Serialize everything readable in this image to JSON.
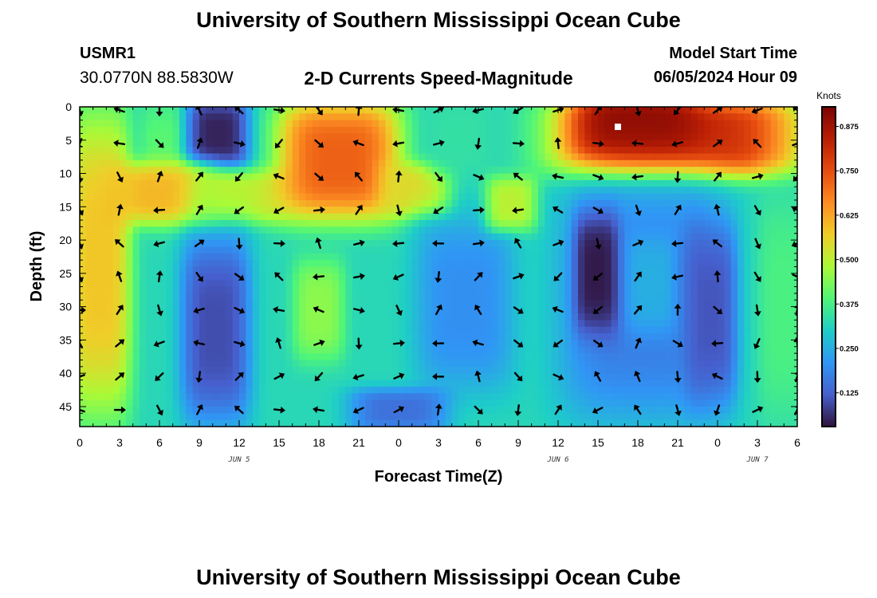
{
  "page": {
    "title": "University of Southern Mississippi Ocean Cube",
    "footer_title": "University of Southern Mississippi Ocean Cube",
    "station_id": "USMR1",
    "station_coords": "30.0770N  88.5830W",
    "model_label": "Model Start Time",
    "model_time": "06/05/2024 Hour 09"
  },
  "chart_data": {
    "type": "heatmap",
    "title": "2-D Currents Speed-Magnitude",
    "xlabel": "Forecast Time(Z)",
    "ylabel": "Depth (ft)",
    "x_tick_labels": [
      "0",
      "3",
      "6",
      "9",
      "12",
      "15",
      "18",
      "21",
      "0",
      "3",
      "6",
      "9",
      "12",
      "15",
      "18",
      "21",
      "0",
      "3",
      "6"
    ],
    "x_range_hours": [
      0,
      54
    ],
    "day_labels": [
      {
        "label": "JUN 5",
        "hour": 12
      },
      {
        "label": "JUN 6",
        "hour": 36
      },
      {
        "label": "JUN 7",
        "hour": 51
      }
    ],
    "y_ticks": [
      0,
      5,
      10,
      15,
      20,
      25,
      30,
      35,
      40,
      45
    ],
    "ylim": [
      0,
      48
    ],
    "y_inverted": true,
    "colorbar": {
      "label": "Knots",
      "ticks": [
        0.125,
        0.25,
        0.375,
        0.5,
        0.625,
        0.75,
        0.875
      ],
      "tick_labels": [
        "0.125",
        "0.250",
        "0.375",
        "0.500",
        "0.625",
        "0.750",
        "0.875"
      ],
      "range": [
        0.03,
        0.93
      ],
      "colormap": "turbo"
    },
    "speed_regions": [
      {
        "t": [
          0,
          3
        ],
        "d": [
          0,
          47
        ],
        "speed": 0.58
      },
      {
        "t": [
          5.5,
          7
        ],
        "d": [
          0,
          17
        ],
        "speed": 0.4
      },
      {
        "t": [
          9,
          11.8
        ],
        "d": [
          0,
          8
        ],
        "speed": 0.05
      },
      {
        "t": [
          3,
          9
        ],
        "d": [
          10,
          16
        ],
        "speed": 0.6
      },
      {
        "t": [
          9,
          15
        ],
        "d": [
          11,
          16
        ],
        "speed": 0.5
      },
      {
        "t": [
          8.5,
          12
        ],
        "d": [
          20,
          47
        ],
        "speed": 0.1
      },
      {
        "t": [
          15.5,
          23.5
        ],
        "d": [
          0,
          16
        ],
        "speed": 0.72
      },
      {
        "t": [
          23.5,
          27
        ],
        "d": [
          10,
          15
        ],
        "speed": 0.55
      },
      {
        "t": [
          17,
          19
        ],
        "d": [
          24,
          37
        ],
        "speed": 0.45
      },
      {
        "t": [
          27,
          30
        ],
        "d": [
          0,
          9
        ],
        "speed": 0.34
      },
      {
        "t": [
          26,
          32
        ],
        "d": [
          17,
          42
        ],
        "speed": 0.2
      },
      {
        "t": [
          21,
          27
        ],
        "d": [
          44,
          47
        ],
        "speed": 0.15
      },
      {
        "t": [
          31.5,
          33.5
        ],
        "d": [
          12,
          17
        ],
        "speed": 0.5
      },
      {
        "t": [
          36,
          54
        ],
        "d": [
          0,
          9
        ],
        "speed": 0.82
      },
      {
        "t": [
          38,
          46
        ],
        "d": [
          0,
          6
        ],
        "speed": 0.9
      },
      {
        "t": [
          36.5,
          48
        ],
        "d": [
          12,
          47
        ],
        "speed": 0.17
      },
      {
        "t": [
          38.2,
          39.6
        ],
        "d": [
          17,
          33
        ],
        "speed": 0.04
      },
      {
        "t": [
          42,
          44
        ],
        "d": [
          20,
          33
        ],
        "speed": 0.25
      },
      {
        "t": [
          46.5,
          48.5
        ],
        "d": [
          18,
          44
        ],
        "speed": 0.11
      },
      {
        "t": [
          52,
          54
        ],
        "d": [
          14,
          47
        ],
        "speed": 0.38
      }
    ],
    "background_speed": 0.32,
    "vector_times": [
      0,
      3,
      6,
      9,
      12,
      15,
      18,
      21,
      24,
      27,
      30,
      33,
      36,
      39,
      42,
      45,
      48,
      51,
      54
    ],
    "vector_depths": [
      0,
      5,
      10,
      15,
      20,
      25,
      30,
      35,
      40,
      45
    ],
    "marker": {
      "hour": 40.5,
      "depth": 3
    }
  }
}
